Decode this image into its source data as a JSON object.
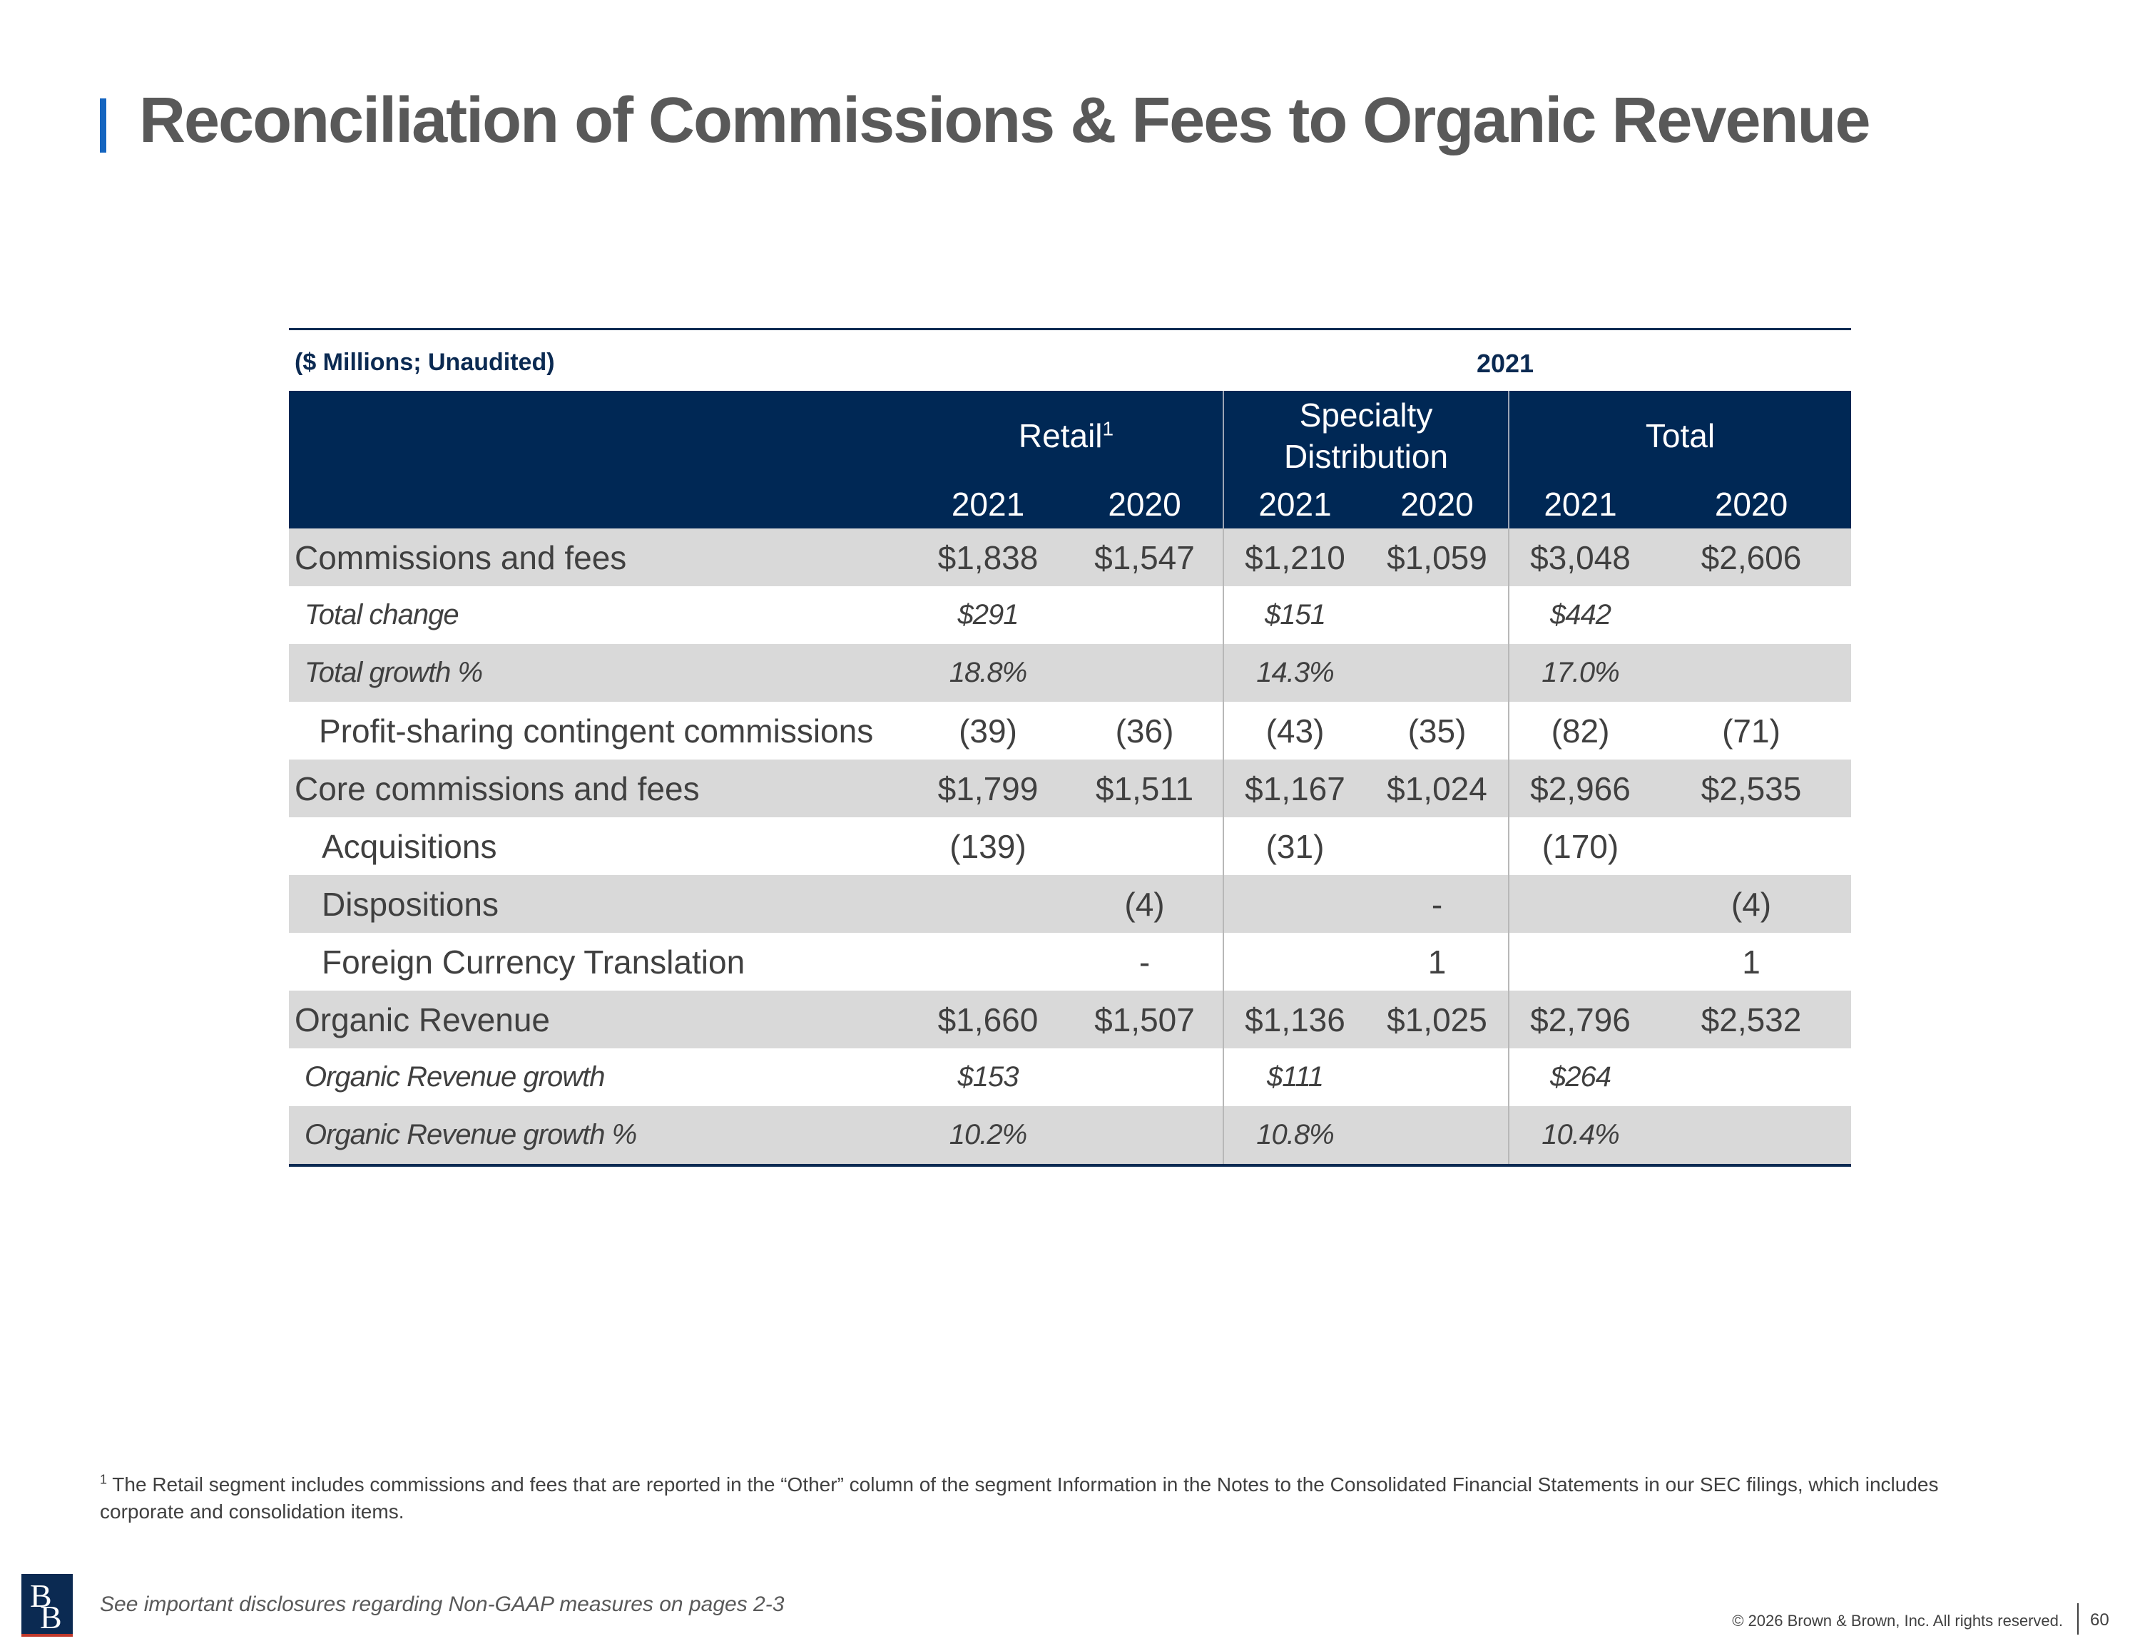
{
  "title": "Reconciliation of Commissions & Fees to Organic Revenue",
  "table": {
    "caption": "($ Millions; Unaudited)",
    "year_caption": "2021",
    "groups": [
      {
        "label": "Retail",
        "superscript": "1"
      },
      {
        "label": "Specialty Distribution",
        "superscript": ""
      },
      {
        "label": "Total",
        "superscript": ""
      }
    ],
    "year_headers": [
      "2021",
      "2020",
      "2021",
      "2020",
      "2021",
      "2020"
    ],
    "rows": [
      {
        "label": "Commissions and fees",
        "style": "main",
        "values": [
          "$1,838",
          "$1,547",
          "$1,210",
          "$1,059",
          "$3,048",
          "$2,606"
        ]
      },
      {
        "label": "Total change",
        "style": "italic",
        "values": [
          "$291",
          "",
          "$151",
          "",
          "$442",
          ""
        ]
      },
      {
        "label": "Total growth %",
        "style": "italic",
        "values": [
          "18.8%",
          "",
          "14.3%",
          "",
          "17.0%",
          ""
        ]
      },
      {
        "label": "Profit-sharing contingent commissions",
        "style": "indent",
        "values": [
          "(39)",
          "(36)",
          "(43)",
          "(35)",
          "(82)",
          "(71)"
        ]
      },
      {
        "label": "Core commissions and fees",
        "style": "main",
        "values": [
          "$1,799",
          "$1,511",
          "$1,167",
          "$1,024",
          "$2,966",
          "$2,535"
        ]
      },
      {
        "label": "Acquisitions",
        "style": "indent",
        "values": [
          "(139)",
          "",
          "(31)",
          "",
          "(170)",
          ""
        ]
      },
      {
        "label": "Dispositions",
        "style": "indent",
        "values": [
          "",
          "(4)",
          "",
          "-",
          "",
          "(4)"
        ]
      },
      {
        "label": "Foreign Currency Translation",
        "style": "indent",
        "values": [
          "",
          "-",
          "",
          "1",
          "",
          "1"
        ]
      },
      {
        "label": "Organic Revenue",
        "style": "main",
        "values": [
          "$1,660",
          "$1,507",
          "$1,136",
          "$1,025",
          "$2,796",
          "$2,532"
        ]
      },
      {
        "label": "Organic Revenue growth",
        "style": "italic",
        "values": [
          "$153",
          "",
          "$111",
          "",
          "$264",
          ""
        ]
      },
      {
        "label": "Organic Revenue growth %",
        "style": "italic",
        "values": [
          "10.2%",
          "",
          "10.8%",
          "",
          "10.4%",
          ""
        ]
      }
    ]
  },
  "footnote": {
    "marker": "1",
    "text": "The Retail segment includes commissions and fees that are reported in the “Other” column of the segment Information in the Notes to the Consolidated Financial Statements in our SEC filings, which includes corporate and consolidation items."
  },
  "footer": {
    "logo_text": "BB",
    "disclosure": "See important disclosures regarding Non-GAAP measures on pages 2-3",
    "copyright": "© 2026 Brown & Brown, Inc. All rights reserved.",
    "page_number": "60"
  },
  "colors": {
    "header_fill": "#002855",
    "title_accent": "#1565c0",
    "row_shade": "#d9d9d9"
  }
}
